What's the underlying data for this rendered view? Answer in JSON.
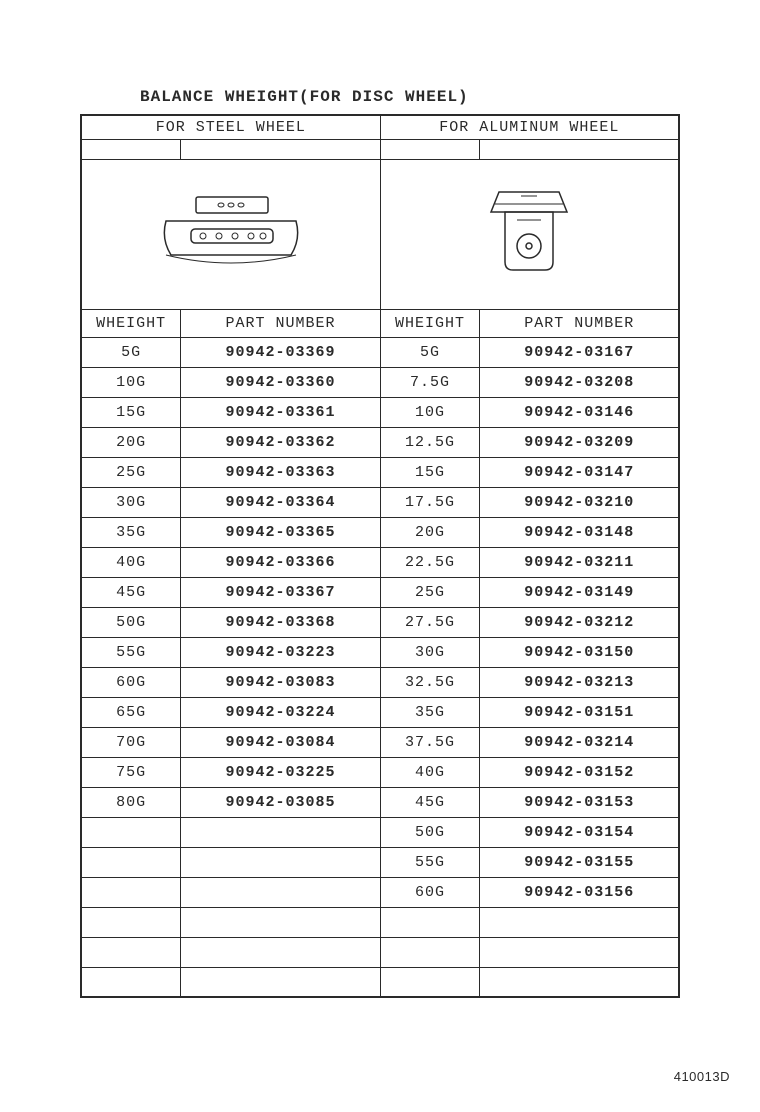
{
  "title": "BALANCE WHEIGHT(FOR DISC WHEEL)",
  "footer_id": "410013D",
  "left": {
    "group_label": "FOR STEEL WHEEL",
    "col_weight": "WHEIGHT",
    "col_part": "PART NUMBER",
    "rows": [
      {
        "w": "5G",
        "p": "90942-03369"
      },
      {
        "w": "10G",
        "p": "90942-03360"
      },
      {
        "w": "15G",
        "p": "90942-03361"
      },
      {
        "w": "20G",
        "p": "90942-03362"
      },
      {
        "w": "25G",
        "p": "90942-03363"
      },
      {
        "w": "30G",
        "p": "90942-03364"
      },
      {
        "w": "35G",
        "p": "90942-03365"
      },
      {
        "w": "40G",
        "p": "90942-03366"
      },
      {
        "w": "45G",
        "p": "90942-03367"
      },
      {
        "w": "50G",
        "p": "90942-03368"
      },
      {
        "w": "55G",
        "p": "90942-03223"
      },
      {
        "w": "60G",
        "p": "90942-03083"
      },
      {
        "w": "65G",
        "p": "90942-03224"
      },
      {
        "w": "70G",
        "p": "90942-03084"
      },
      {
        "w": "75G",
        "p": "90942-03225"
      },
      {
        "w": "80G",
        "p": "90942-03085"
      },
      {
        "w": "",
        "p": ""
      },
      {
        "w": "",
        "p": ""
      },
      {
        "w": "",
        "p": ""
      },
      {
        "w": "",
        "p": ""
      },
      {
        "w": "",
        "p": ""
      },
      {
        "w": "",
        "p": ""
      }
    ]
  },
  "right": {
    "group_label": "FOR ALUMINUM WHEEL",
    "col_weight": "WHEIGHT",
    "col_part": "PART NUMBER",
    "rows": [
      {
        "w": "5G",
        "p": "90942-03167"
      },
      {
        "w": "7.5G",
        "p": "90942-03208"
      },
      {
        "w": "10G",
        "p": "90942-03146"
      },
      {
        "w": "12.5G",
        "p": "90942-03209"
      },
      {
        "w": "15G",
        "p": "90942-03147"
      },
      {
        "w": "17.5G",
        "p": "90942-03210"
      },
      {
        "w": "20G",
        "p": "90942-03148"
      },
      {
        "w": "22.5G",
        "p": "90942-03211"
      },
      {
        "w": "25G",
        "p": "90942-03149"
      },
      {
        "w": "27.5G",
        "p": "90942-03212"
      },
      {
        "w": "30G",
        "p": "90942-03150"
      },
      {
        "w": "32.5G",
        "p": "90942-03213"
      },
      {
        "w": "35G",
        "p": "90942-03151"
      },
      {
        "w": "37.5G",
        "p": "90942-03214"
      },
      {
        "w": "40G",
        "p": "90942-03152"
      },
      {
        "w": "45G",
        "p": "90942-03153"
      },
      {
        "w": "50G",
        "p": "90942-03154"
      },
      {
        "w": "55G",
        "p": "90942-03155"
      },
      {
        "w": "60G",
        "p": "90942-03156"
      },
      {
        "w": "",
        "p": ""
      },
      {
        "w": "",
        "p": ""
      },
      {
        "w": "",
        "p": ""
      }
    ]
  },
  "diagram": {
    "stroke": "#2a2a2a",
    "fill": "#ffffff"
  }
}
